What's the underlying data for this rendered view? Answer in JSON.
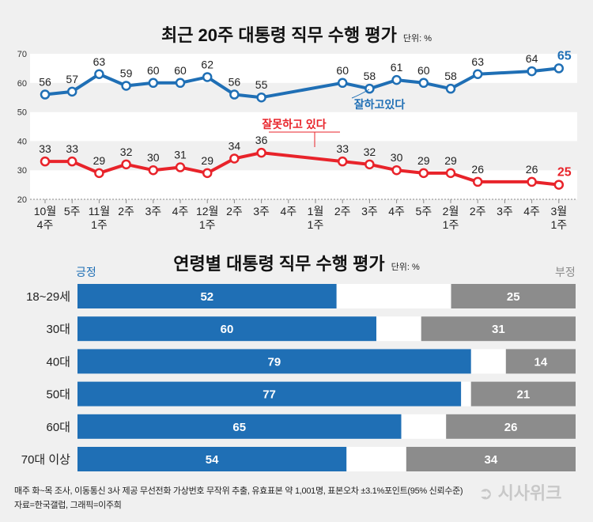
{
  "colors": {
    "positive": "#1f6fb5",
    "negative": "#e8232a",
    "neg_bar": "#8c8c8c",
    "bg": "#f0f0f0"
  },
  "chart_data": [
    {
      "type": "line",
      "title": "최근 20주 대통령 직무 수행 평가",
      "unit": "단위: %",
      "ylim": [
        20,
        70
      ],
      "yticks": [
        "20",
        "30",
        "40",
        "50",
        "60",
        "70"
      ],
      "categories": [
        "10월 4주",
        "5주",
        "11월 1주",
        "2주",
        "3주",
        "4주",
        "12월 1주",
        "2주",
        "3주",
        "4주",
        "1월 1주",
        "2주",
        "3주",
        "4주",
        "5주",
        "2월 1주",
        "2주",
        "3주",
        "4주",
        "3월 1주"
      ],
      "tick_labels": [
        [
          "10월",
          "4주"
        ],
        [
          "5주",
          ""
        ],
        [
          "11월",
          "1주"
        ],
        [
          "2주",
          ""
        ],
        [
          "3주",
          ""
        ],
        [
          "4주",
          ""
        ],
        [
          "12월",
          "1주"
        ],
        [
          "2주",
          ""
        ],
        [
          "3주",
          ""
        ],
        [
          "4주",
          ""
        ],
        [
          "1월",
          "1주"
        ],
        [
          "2주",
          ""
        ],
        [
          "3주",
          ""
        ],
        [
          "4주",
          ""
        ],
        [
          "5주",
          ""
        ],
        [
          "2월",
          "1주"
        ],
        [
          "2주",
          ""
        ],
        [
          "3주",
          ""
        ],
        [
          "4주",
          ""
        ],
        [
          "3월",
          "1주"
        ]
      ],
      "series": [
        {
          "name": "잘하고있다",
          "values": [
            56,
            57,
            63,
            59,
            60,
            60,
            62,
            56,
            55,
            null,
            null,
            60,
            58,
            61,
            60,
            58,
            63,
            null,
            64,
            65
          ]
        },
        {
          "name": "잘못하고 있다",
          "values": [
            33,
            33,
            29,
            32,
            30,
            31,
            29,
            34,
            36,
            null,
            null,
            33,
            32,
            30,
            29,
            29,
            26,
            null,
            26,
            25
          ]
        }
      ]
    },
    {
      "type": "bar",
      "title": "연령별 대통령 직무 수행 평가",
      "unit": "단위: %",
      "positive_label": "긍정",
      "negative_label": "부정",
      "categories": [
        "18~29세",
        "30대",
        "40대",
        "50대",
        "60대",
        "70대 이상"
      ],
      "series": [
        {
          "name": "긍정",
          "values": [
            52,
            60,
            79,
            77,
            65,
            54
          ]
        },
        {
          "name": "부정",
          "values": [
            25,
            31,
            14,
            21,
            26,
            34
          ]
        }
      ]
    }
  ],
  "footer": {
    "line1": "매주 화~목 조사, 이동통신 3사 제공 무선전화 가상번호 무작위 추출, 유효표본 약 1,001명, 표본오차 ±3.1%포인트(95% 신뢰수준)",
    "line2": "자료=한국갤럽, 그래픽=이주희",
    "logo": "시사위크"
  }
}
